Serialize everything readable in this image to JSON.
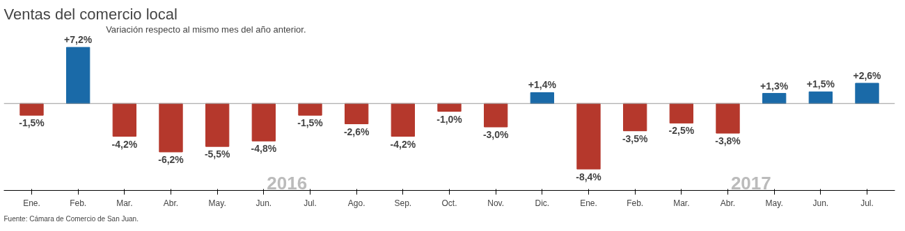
{
  "chart_data": {
    "type": "bar",
    "title": "Ventas del comercio local",
    "subtitle": "Variación respecto al mismo mes del año anterior.",
    "categories": [
      "Ene.",
      "Feb.",
      "Mar.",
      "Abr.",
      "May.",
      "Jun.",
      "Jul.",
      "Ago.",
      "Sep.",
      "Oct.",
      "Nov.",
      "Dic.",
      "Ene.",
      "Feb.",
      "Mar.",
      "Abr.",
      "May.",
      "Jun.",
      "Jul."
    ],
    "values": [
      -1.5,
      7.2,
      -4.2,
      -6.2,
      -5.5,
      -4.8,
      -1.5,
      -2.6,
      -4.2,
      -1.0,
      -3.0,
      1.4,
      -8.4,
      -3.5,
      -2.5,
      -3.8,
      1.3,
      1.5,
      2.6
    ],
    "colors": [
      "#b5382c",
      "#1a6aa8",
      "#b5382c",
      "#b5382c",
      "#b5382c",
      "#b5382c",
      "#b5382c",
      "#b5382c",
      "#b5382c",
      "#b5382c",
      "#b5382c",
      "#1a6aa8",
      "#b5382c",
      "#b5382c",
      "#b5382c",
      "#b5382c",
      "#1a6aa8",
      "#1a6aa8",
      "#1a6aa8"
    ],
    "value_labels": [
      "-1,5%",
      "+7,2%",
      "-4,2%",
      "-6,2%",
      "-5,5%",
      "-4,8%",
      "-1,5%",
      "-2,6%",
      "-4,2%",
      "-1,0%",
      "-3,0%",
      "+1,4%",
      "-8,4%",
      "-3,5%",
      "-2,5%",
      "-3,8%",
      "+1,3%",
      "+1,5%",
      "+2,6%"
    ],
    "tick_labels": "x",
    "annotations": [
      "2016",
      "2017",
      "Fuente: Cámara de Comercio de San Juan."
    ]
  }
}
